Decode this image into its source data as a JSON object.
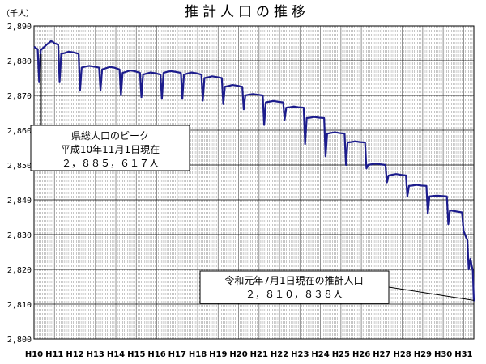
{
  "chart_data": {
    "type": "line",
    "title": "推計人口の推移",
    "unit_label": "（千人）",
    "ylim": [
      2800,
      2890
    ],
    "y_ticks": [
      "2,890",
      "2,880",
      "2,870",
      "2,860",
      "2,850",
      "2,840",
      "2,830",
      "2,820",
      "2,810",
      "2,800"
    ],
    "y_tick_values": [
      2890,
      2880,
      2870,
      2860,
      2850,
      2840,
      2830,
      2820,
      2810,
      2800
    ],
    "x_ticks": [
      "H10",
      "H11",
      "H12",
      "H13",
      "H14",
      "H15",
      "H16",
      "H17",
      "H18",
      "H19",
      "H20",
      "H21",
      "H22",
      "H23",
      "H24",
      "H25",
      "H26",
      "H27",
      "H28",
      "H29",
      "H30",
      "H31"
    ],
    "xlim": [
      10,
      31.5
    ],
    "grid": {
      "horizontal": true,
      "vertical_monthly_dashed": true,
      "yearly_solid": true
    },
    "series": [
      {
        "color": "#1c1c8c",
        "points": [
          [
            10.0,
            2884
          ],
          [
            10.1,
            2883.6
          ],
          [
            10.18,
            2883.3
          ],
          [
            10.25,
            2874
          ],
          [
            10.33,
            2883
          ],
          [
            10.45,
            2883.7
          ],
          [
            10.6,
            2884.5
          ],
          [
            10.75,
            2885.2
          ],
          [
            10.83,
            2885.617
          ],
          [
            10.92,
            2885.4
          ],
          [
            11.0,
            2885
          ],
          [
            11.18,
            2884.6
          ],
          [
            11.25,
            2874
          ],
          [
            11.33,
            2882
          ],
          [
            11.5,
            2882.2
          ],
          [
            11.7,
            2882.6
          ],
          [
            11.92,
            2882.4
          ],
          [
            12.18,
            2882
          ],
          [
            12.25,
            2871.5
          ],
          [
            12.33,
            2878
          ],
          [
            12.5,
            2878.3
          ],
          [
            12.7,
            2878.5
          ],
          [
            12.92,
            2878.3
          ],
          [
            13.18,
            2878
          ],
          [
            13.25,
            2871.5
          ],
          [
            13.33,
            2877.5
          ],
          [
            13.5,
            2877.8
          ],
          [
            13.7,
            2878.2
          ],
          [
            13.92,
            2878.0
          ],
          [
            14.18,
            2877.5
          ],
          [
            14.25,
            2870
          ],
          [
            14.33,
            2876.5
          ],
          [
            14.5,
            2876.8
          ],
          [
            14.7,
            2877.2
          ],
          [
            14.92,
            2877.0
          ],
          [
            15.18,
            2876.5
          ],
          [
            15.25,
            2869.5
          ],
          [
            15.33,
            2876
          ],
          [
            15.5,
            2876.3
          ],
          [
            15.7,
            2876.6
          ],
          [
            15.92,
            2876.4
          ],
          [
            16.18,
            2876
          ],
          [
            16.25,
            2869
          ],
          [
            16.33,
            2876.5
          ],
          [
            16.5,
            2876.8
          ],
          [
            16.7,
            2877
          ],
          [
            16.92,
            2876.8
          ],
          [
            17.18,
            2876.5
          ],
          [
            17.25,
            2869
          ],
          [
            17.33,
            2876
          ],
          [
            17.5,
            2876.3
          ],
          [
            17.7,
            2876.6
          ],
          [
            17.92,
            2876.4
          ],
          [
            18.18,
            2876
          ],
          [
            18.25,
            2868.5
          ],
          [
            18.33,
            2875
          ],
          [
            18.5,
            2875.2
          ],
          [
            18.7,
            2875.5
          ],
          [
            18.92,
            2875.3
          ],
          [
            19.18,
            2875
          ],
          [
            19.25,
            2867.5
          ],
          [
            19.33,
            2872.5
          ],
          [
            19.5,
            2872.7
          ],
          [
            19.7,
            2873
          ],
          [
            19.92,
            2872.8
          ],
          [
            20.18,
            2872.5
          ],
          [
            20.25,
            2866
          ],
          [
            20.33,
            2870
          ],
          [
            20.5,
            2870.2
          ],
          [
            20.7,
            2870.4
          ],
          [
            20.92,
            2870.2
          ],
          [
            21.18,
            2870
          ],
          [
            21.25,
            2861.5
          ],
          [
            21.33,
            2868
          ],
          [
            21.5,
            2868.2
          ],
          [
            21.7,
            2868.4
          ],
          [
            21.92,
            2868.2
          ],
          [
            22.18,
            2868
          ],
          [
            22.25,
            2863
          ],
          [
            22.33,
            2866.5
          ],
          [
            22.5,
            2866.6
          ],
          [
            22.7,
            2866.8
          ],
          [
            22.92,
            2866.6
          ],
          [
            23.18,
            2866.5
          ],
          [
            23.25,
            2856
          ],
          [
            23.33,
            2863.5
          ],
          [
            23.5,
            2863.6
          ],
          [
            23.7,
            2863.8
          ],
          [
            23.92,
            2863.6
          ],
          [
            24.18,
            2863.5
          ],
          [
            24.25,
            2852.5
          ],
          [
            24.33,
            2859
          ],
          [
            24.5,
            2859.2
          ],
          [
            24.7,
            2859.4
          ],
          [
            24.92,
            2859.2
          ],
          [
            25.18,
            2859
          ],
          [
            25.25,
            2850
          ],
          [
            25.33,
            2856.5
          ],
          [
            25.5,
            2856.6
          ],
          [
            25.7,
            2856.8
          ],
          [
            25.92,
            2856.6
          ],
          [
            26.18,
            2856.5
          ],
          [
            26.25,
            2849
          ],
          [
            26.33,
            2850
          ],
          [
            26.5,
            2850.2
          ],
          [
            26.7,
            2850.4
          ],
          [
            26.92,
            2850.2
          ],
          [
            27.18,
            2850
          ],
          [
            27.25,
            2845
          ],
          [
            27.33,
            2847
          ],
          [
            27.5,
            2847.2
          ],
          [
            27.7,
            2847.4
          ],
          [
            27.92,
            2847.2
          ],
          [
            28.18,
            2847
          ],
          [
            28.25,
            2841
          ],
          [
            28.33,
            2844
          ],
          [
            28.5,
            2844.1
          ],
          [
            28.7,
            2844.3
          ],
          [
            28.92,
            2844.1
          ],
          [
            29.18,
            2844
          ],
          [
            29.25,
            2836
          ],
          [
            29.33,
            2841
          ],
          [
            29.5,
            2841.1
          ],
          [
            29.7,
            2841.2
          ],
          [
            29.92,
            2841.1
          ],
          [
            30.18,
            2841
          ],
          [
            30.25,
            2833
          ],
          [
            30.33,
            2837
          ],
          [
            30.5,
            2836.8
          ],
          [
            30.7,
            2836.6
          ],
          [
            30.92,
            2836.4
          ],
          [
            31.0,
            2831
          ],
          [
            31.1,
            2829.5
          ],
          [
            31.18,
            2828.5
          ],
          [
            31.25,
            2820
          ],
          [
            31.33,
            2823
          ],
          [
            31.4,
            2821
          ],
          [
            31.45,
            2819.5
          ],
          [
            31.5,
            2810.838
          ]
        ]
      }
    ],
    "annotations": [
      {
        "lines": [
          "県総人口のピーク",
          "平成10年11月1日現在",
          "２，８８５，６１７人"
        ],
        "point": [
          10.83,
          2885.617
        ]
      },
      {
        "lines": [
          "令和元年7月1日現在の推計人口",
          "２，８１０，８３８人"
        ],
        "point": [
          31.5,
          2810.838
        ]
      }
    ]
  }
}
